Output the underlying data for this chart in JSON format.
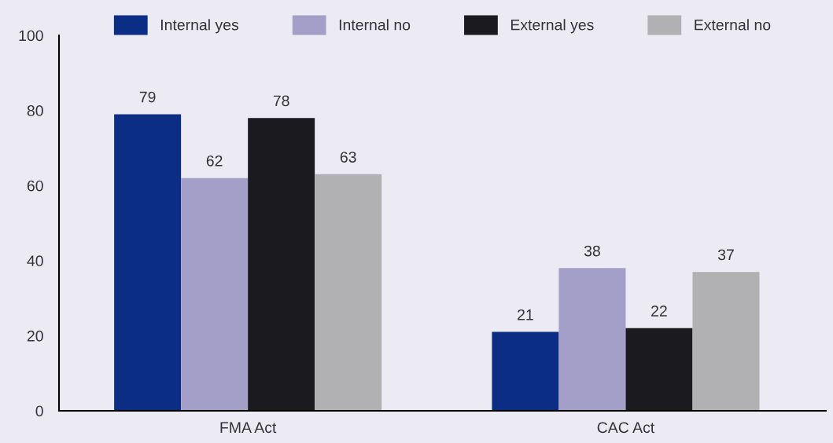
{
  "chart_data": {
    "type": "bar",
    "categories": [
      "FMA Act",
      "CAC Act"
    ],
    "series": [
      {
        "name": "Internal yes",
        "color": "#0b2d84",
        "values": [
          79,
          21
        ]
      },
      {
        "name": "Internal no",
        "color": "#a49fc8",
        "values": [
          62,
          38
        ]
      },
      {
        "name": "External yes",
        "color": "#1b1a1f",
        "values": [
          78,
          22
        ]
      },
      {
        "name": "External no",
        "color": "#b1b1b3",
        "values": [
          63,
          37
        ]
      }
    ],
    "ylim": [
      0,
      100
    ],
    "yticks": [
      0,
      20,
      40,
      60,
      80,
      100
    ],
    "data_labels": true,
    "grid": false,
    "legend": "top"
  }
}
